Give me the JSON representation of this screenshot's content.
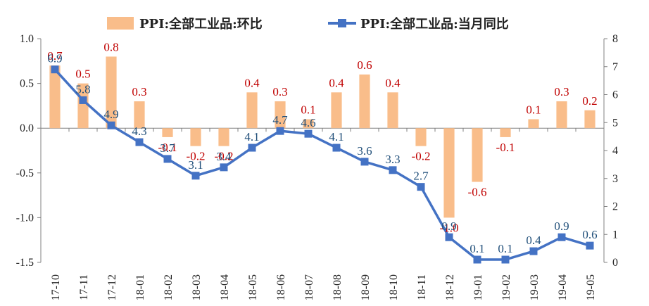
{
  "chart_data": {
    "type": "bar",
    "categories": [
      "17-10",
      "17-11",
      "17-12",
      "18-01",
      "18-02",
      "18-03",
      "18-04",
      "18-05",
      "18-06",
      "18-07",
      "18-08",
      "18-09",
      "18-10",
      "18-11",
      "18-12",
      "19-01",
      "19-02",
      "19-03",
      "19-04",
      "19-05"
    ],
    "series": [
      {
        "name": "PPI:全部工业品:环比",
        "type": "bar",
        "axis": "left",
        "color": "#f9bd8a",
        "label_color": "#c00000",
        "values": [
          0.7,
          0.5,
          0.8,
          0.3,
          -0.1,
          -0.2,
          -0.2,
          0.4,
          0.3,
          0.1,
          0.4,
          0.6,
          0.4,
          -0.2,
          -1.0,
          -0.6,
          -0.1,
          0.1,
          0.3,
          0.2
        ],
        "labels": [
          "0.7",
          "0.5",
          "0.8",
          "0.3",
          "-0.1",
          "-0.2",
          "-0.2",
          "0.4",
          "0.3",
          "0.1",
          "0.4",
          "0.6",
          "0.4",
          "-0.2",
          "-1.0",
          "-0.6",
          "-0.1",
          "0.1",
          "0.3",
          "0.2"
        ]
      },
      {
        "name": "PPI:全部工业品:当月同比",
        "type": "line",
        "axis": "right",
        "color": "#4472c4",
        "label_color": "#1f4e79",
        "values": [
          6.9,
          5.8,
          4.9,
          4.3,
          3.7,
          3.1,
          3.4,
          4.1,
          4.7,
          4.6,
          4.1,
          3.6,
          3.3,
          2.7,
          0.9,
          0.1,
          0.1,
          0.4,
          0.9,
          0.6
        ],
        "labels": [
          "6.9",
          "5.8",
          "4.9",
          "4.3",
          "3.7",
          "3.1",
          "3.4",
          "4.1",
          "4.7",
          "4.6",
          "4.1",
          "3.6",
          "3.3",
          "2.7",
          "0.9",
          "0.1",
          "0.1",
          "0.4",
          "0.9",
          "0.6"
        ]
      }
    ],
    "y_left": {
      "ylim": [
        -1.5,
        1.0
      ],
      "ticks": [
        "1.0",
        "0.5",
        "0.0",
        "-0.5",
        "-1.0",
        "-1.5"
      ],
      "tick_values": [
        1.0,
        0.5,
        0.0,
        -0.5,
        -1.0,
        -1.5
      ]
    },
    "y_right": {
      "ylim": [
        0,
        8
      ],
      "ticks": [
        "8",
        "7",
        "6",
        "5",
        "4",
        "3",
        "2",
        "1",
        "0"
      ],
      "tick_values": [
        8,
        7,
        6,
        5,
        4,
        3,
        2,
        1,
        0
      ]
    },
    "legend": {
      "position": "top"
    },
    "grid": false
  }
}
